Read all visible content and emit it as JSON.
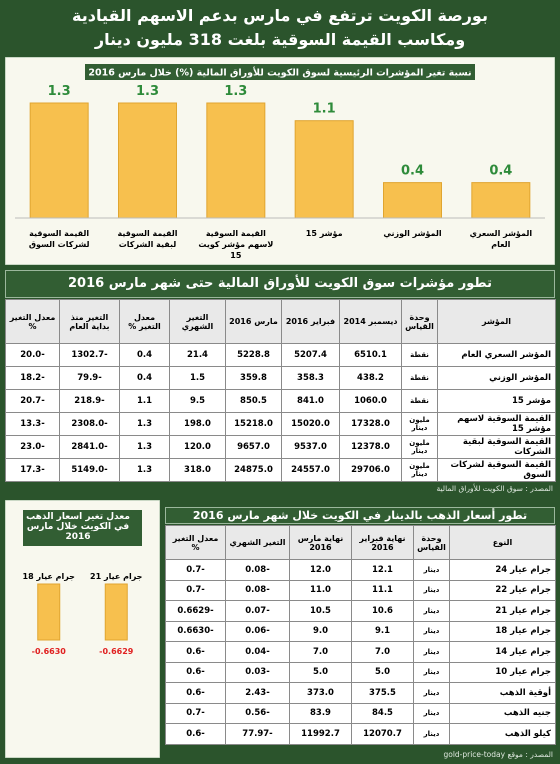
{
  "title": [
    "بورصة الكويت ترتفع في مارس بدعم الاسهم القيادية",
    "ومكاسب القيمة السوقية بلغت 318 مليون دينار"
  ],
  "chart_data": [
    {
      "type": "bar",
      "title": "نسبة تغير المؤشرات الرئيسية لسوق الكويت للأوراق المالية (%) خلال مارس 2016",
      "categories": [
        "المؤشر السعري العام",
        "المؤشر الوزني",
        "مؤشر 15",
        "القيمة السوقية لاسهم مؤشر كويت 15",
        "القيمة السوقية لبقية الشركات",
        "القيمة السوقية لشركات السوق"
      ],
      "values": [
        0.4,
        0.4,
        1.1,
        1.3,
        1.3,
        1.3
      ],
      "color": "#f7c04e",
      "label_color": "#2e8b3a"
    },
    {
      "type": "bar",
      "title": "معدل تغير اسعار الذهب في الكويت خلال مارس 2016",
      "categories": [
        "جرام عيار 21",
        "جرام عيار 18"
      ],
      "values": [
        -0.6629,
        -0.663
      ],
      "value_labels": [
        "-0.6629",
        "-0.6630"
      ],
      "color": "#f7c04e",
      "label_color": "#e02020"
    }
  ],
  "table1": {
    "title": "تطور مؤشرات سوق الكويت للأوراق المالية حتى شهر مارس 2016",
    "headers": [
      "المؤشر",
      "وحدة القياس",
      "ديسمبر 2014",
      "فبراير 2016",
      "مارس 2016",
      "التغير الشهري",
      "معدل التغير %",
      "التغير منذ بداية العام",
      "معدل التغير %"
    ],
    "rows": [
      [
        "المؤشر السعري العام",
        "نقطة",
        "6510.1",
        "5207.4",
        "5228.8",
        "21.4",
        "0.4",
        "-1302.7",
        "-20.0"
      ],
      [
        "المؤشر الوزني",
        "نقطة",
        "438.2",
        "358.3",
        "359.8",
        "1.5",
        "0.4",
        "-79.9",
        "-18.2"
      ],
      [
        "مؤشر 15",
        "نقطة",
        "1060.0",
        "841.0",
        "850.5",
        "9.5",
        "1.1",
        "-218.9",
        "-20.7"
      ],
      [
        "القيمة السوقية لاسهم مؤشر 15",
        "مليون دينار",
        "17328.0",
        "15020.0",
        "15218.0",
        "198.0",
        "1.3",
        "-2308.0",
        "-13.3"
      ],
      [
        "القيمة السوقية لبقية الشركات",
        "مليون دينار",
        "12378.0",
        "9537.0",
        "9657.0",
        "120.0",
        "1.3",
        "-2841.0",
        "-23.0"
      ],
      [
        "القيمة السوقية لشركات السوق",
        "مليون دينار",
        "29706.0",
        "24557.0",
        "24875.0",
        "318.0",
        "1.3",
        "-5149.0",
        "-17.3"
      ]
    ],
    "source": "المصدر : سوق الكويت للأوراق المالية"
  },
  "table2": {
    "title": "تطور أسعار الذهب بالدينار في الكويت خلال شهر مارس 2016",
    "headers": [
      "النوع",
      "وحدة القياس",
      "نهاية فبراير 2016",
      "نهاية مارس 2016",
      "التغير الشهري",
      "معدل التغير %"
    ],
    "rows": [
      [
        "جرام عيار 24",
        "دينار",
        "12.1",
        "12.0",
        "-0.08",
        "-0.7"
      ],
      [
        "جرام عيار 22",
        "دينار",
        "11.1",
        "11.0",
        "-0.08",
        "-0.7"
      ],
      [
        "جرام عيار 21",
        "دينار",
        "10.6",
        "10.5",
        "-0.07",
        "-0.6629"
      ],
      [
        "جرام عيار 18",
        "دينار",
        "9.1",
        "9.0",
        "-0.06",
        "-0.6630"
      ],
      [
        "جرام عيار 14",
        "دينار",
        "7.0",
        "7.0",
        "-0.04",
        "-0.6"
      ],
      [
        "جرام عيار 10",
        "دينار",
        "5.0",
        "5.0",
        "-0.03",
        "-0.6"
      ],
      [
        "أوقية الذهب",
        "دينار",
        "375.5",
        "373.0",
        "-2.43",
        "-0.6"
      ],
      [
        "جنيه الذهب",
        "دينار",
        "84.5",
        "83.9",
        "-0.56",
        "-0.7"
      ],
      [
        "كيلو الذهب",
        "دينار",
        "12070.7",
        "11992.7",
        "-77.97",
        "-0.6"
      ]
    ],
    "source": "المصدر : موقع gold-price-today"
  }
}
